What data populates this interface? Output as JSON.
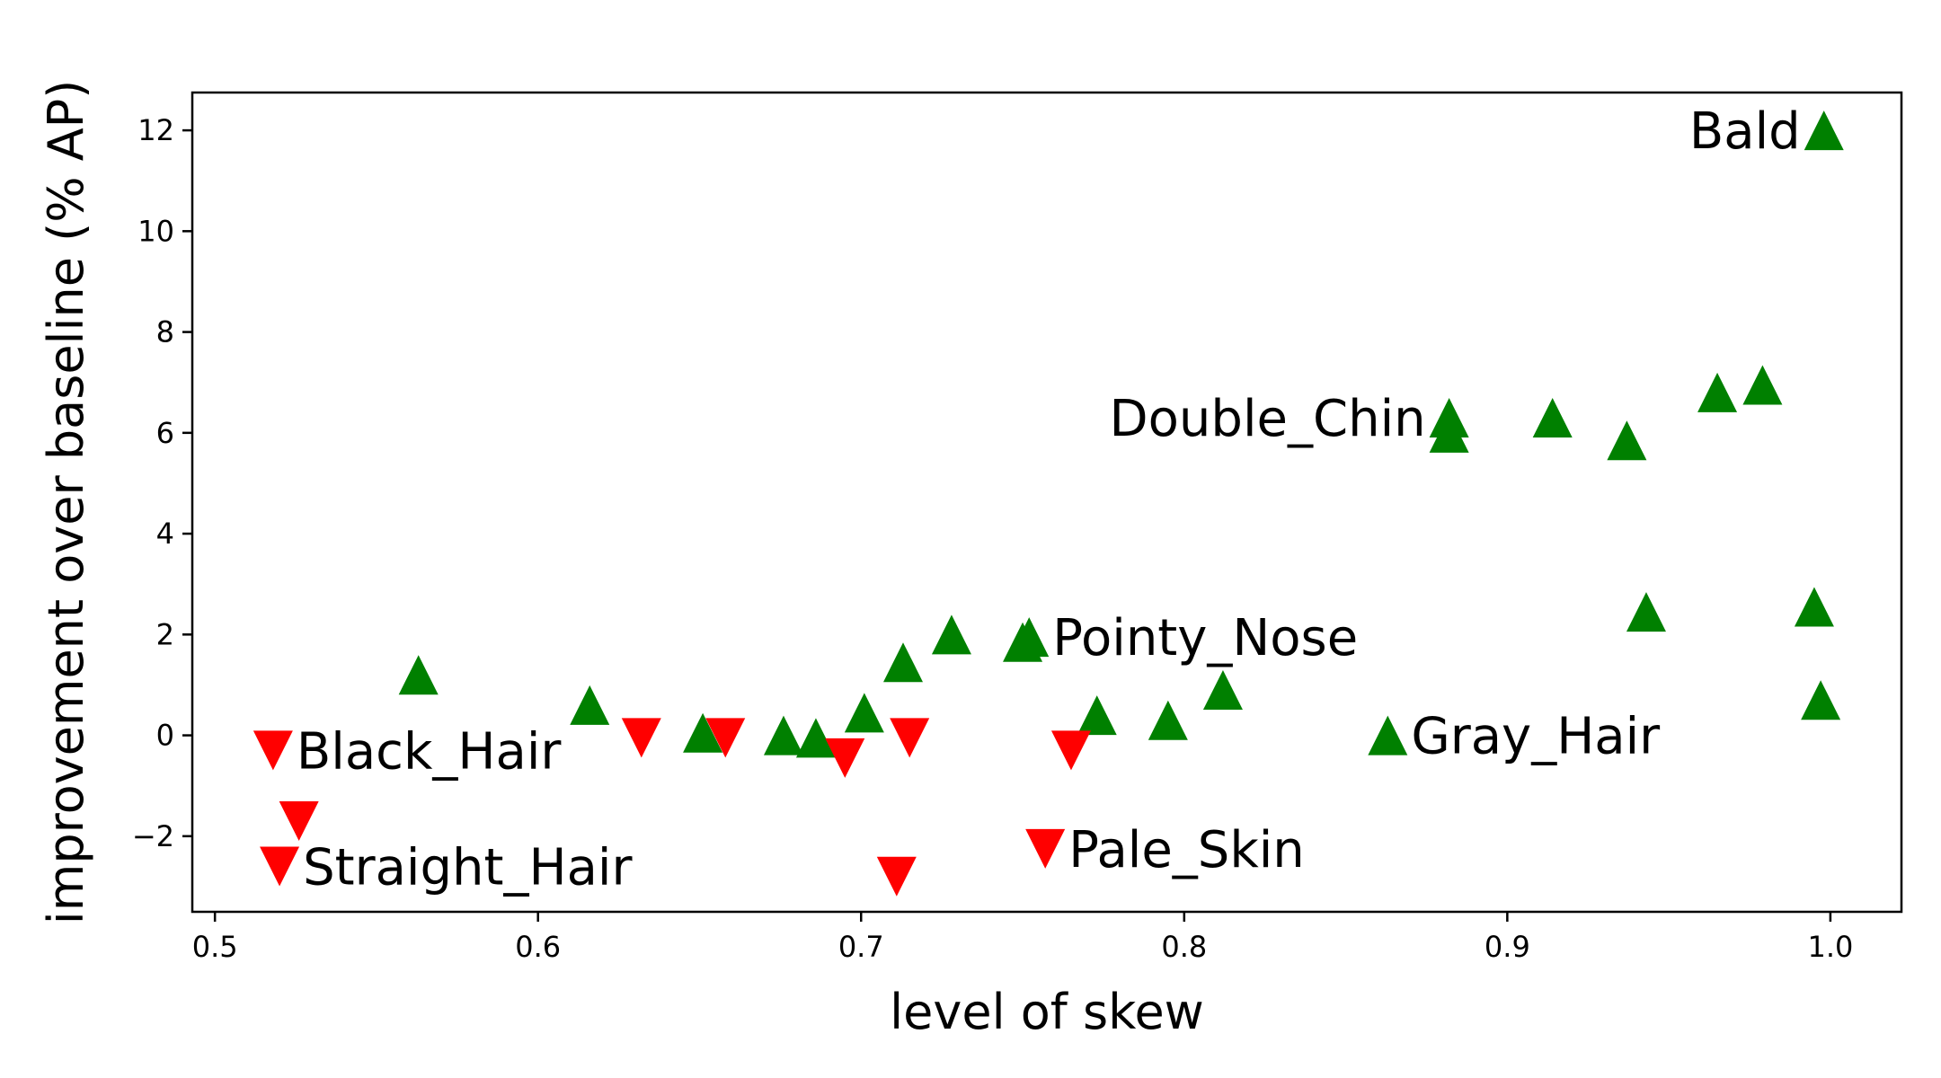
{
  "chart_data": {
    "type": "scatter",
    "title": "",
    "xlabel": "level of skew",
    "ylabel": "improvement over baseline (% AP)",
    "xlim": [
      0.493,
      1.022
    ],
    "ylim": [
      -3.5,
      12.75
    ],
    "xticks": [
      0.5,
      0.6,
      0.7,
      0.8,
      0.9,
      1.0
    ],
    "xtick_labels": [
      "0.5",
      "0.6",
      "0.7",
      "0.8",
      "0.9",
      "1.0"
    ],
    "yticks": [
      -2,
      0,
      2,
      4,
      6,
      8,
      10,
      12
    ],
    "ytick_labels": [
      "−2",
      "0",
      "2",
      "4",
      "6",
      "8",
      "10",
      "12"
    ],
    "grid": false,
    "legend": "none",
    "colors": {
      "positive": "#008000",
      "negative": "#ff0000"
    },
    "series": [
      {
        "marker": "triangle-up",
        "color": "#008000",
        "points": [
          {
            "x": 0.563,
            "y": 1.2
          },
          {
            "x": 0.616,
            "y": 0.6
          },
          {
            "x": 0.651,
            "y": 0.05
          },
          {
            "x": 0.676,
            "y": 0.0
          },
          {
            "x": 0.686,
            "y": -0.05
          },
          {
            "x": 0.701,
            "y": 0.45
          },
          {
            "x": 0.713,
            "y": 1.45
          },
          {
            "x": 0.728,
            "y": 2.0
          },
          {
            "x": 0.75,
            "y": 1.85
          },
          {
            "x": 0.752,
            "y": 1.95
          },
          {
            "x": 0.773,
            "y": 0.4
          },
          {
            "x": 0.795,
            "y": 0.3
          },
          {
            "x": 0.812,
            "y": 0.9
          },
          {
            "x": 0.863,
            "y": 0.0
          },
          {
            "x": 0.882,
            "y": 6.3
          },
          {
            "x": 0.882,
            "y": 6.0
          },
          {
            "x": 0.914,
            "y": 6.3
          },
          {
            "x": 0.937,
            "y": 5.85
          },
          {
            "x": 0.943,
            "y": 2.45
          },
          {
            "x": 0.965,
            "y": 6.8
          },
          {
            "x": 0.979,
            "y": 6.95
          },
          {
            "x": 0.995,
            "y": 2.55
          },
          {
            "x": 0.997,
            "y": 0.7
          },
          {
            "x": 0.998,
            "y": 12.0
          }
        ]
      },
      {
        "marker": "triangle-down",
        "color": "#ff0000",
        "points": [
          {
            "x": 0.518,
            "y": -0.3
          },
          {
            "x": 0.52,
            "y": -2.6
          },
          {
            "x": 0.526,
            "y": -1.7
          },
          {
            "x": 0.632,
            "y": -0.05
          },
          {
            "x": 0.658,
            "y": -0.05
          },
          {
            "x": 0.695,
            "y": -0.45
          },
          {
            "x": 0.711,
            "y": -2.8
          },
          {
            "x": 0.715,
            "y": -0.05
          },
          {
            "x": 0.757,
            "y": -2.25
          },
          {
            "x": 0.765,
            "y": -0.3
          }
        ]
      }
    ],
    "annotations": [
      {
        "text": "Bald",
        "x": 0.998,
        "y": 12.0,
        "anchor": "end"
      },
      {
        "text": "Double_Chin",
        "x": 0.882,
        "y": 6.3,
        "anchor": "end"
      },
      {
        "text": "Pointy_Nose",
        "x": 0.752,
        "y": 1.95,
        "anchor": "start"
      },
      {
        "text": "Gray_Hair",
        "x": 0.863,
        "y": 0.0,
        "anchor": "start"
      },
      {
        "text": "Black_Hair",
        "x": 0.518,
        "y": -0.3,
        "anchor": "start"
      },
      {
        "text": "Pale_Skin",
        "x": 0.757,
        "y": -2.25,
        "anchor": "start"
      },
      {
        "text": "Straight_Hair",
        "x": 0.52,
        "y": -2.6,
        "anchor": "start"
      }
    ]
  }
}
